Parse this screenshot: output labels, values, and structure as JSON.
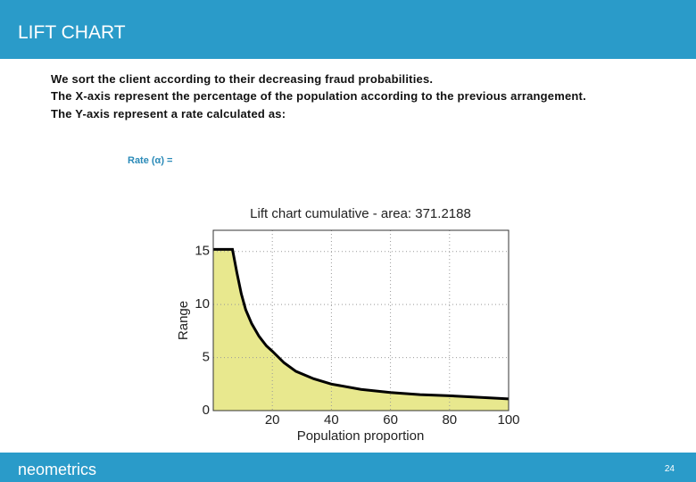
{
  "header": {
    "title": "LIFT CHART"
  },
  "body": {
    "lines": [
      "We sort the client according to their decreasing fraud probabilities.",
      "The X-axis represent the percentage of the population according to the previous arrangement.",
      "The Y-axis represent a rate calculated as:"
    ],
    "formula": "Rate (α) ="
  },
  "chart_data": {
    "type": "area",
    "title": "Lift chart cumulative - area: 371.2188",
    "x_label": "Population proportion",
    "y_label": "Range",
    "x": [
      0,
      6.5,
      8,
      9.5,
      11,
      13,
      15.5,
      18,
      20,
      24,
      28,
      34,
      40,
      50,
      60,
      70,
      80,
      90,
      100
    ],
    "values": [
      15.2,
      15.2,
      13,
      11,
      9.5,
      8.2,
      7,
      6.1,
      5.6,
      4.5,
      3.7,
      3,
      2.5,
      2,
      1.7,
      1.5,
      1.4,
      1.25,
      1.1
    ],
    "color": "#e8e88e",
    "line_color": "#000000",
    "xlim": [
      0,
      100
    ],
    "ylim": [
      0,
      17
    ],
    "xticks": [
      20,
      40,
      60,
      80,
      100
    ],
    "yticks": [
      0,
      5,
      10,
      15
    ],
    "grid": true
  },
  "footer": {
    "brand": "neometrics",
    "page": "24"
  }
}
